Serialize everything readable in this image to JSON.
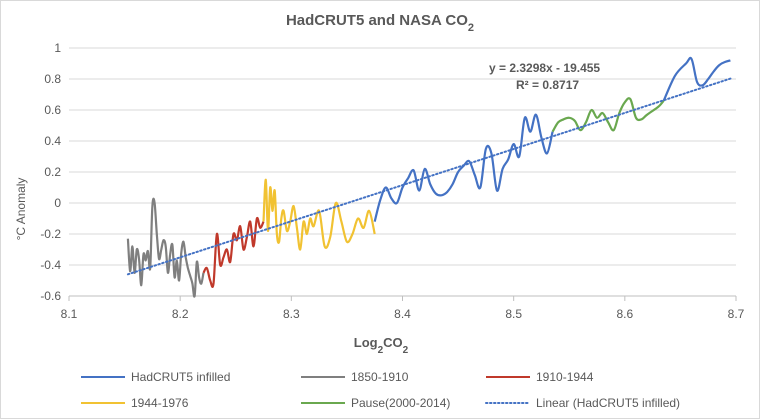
{
  "chart_data": {
    "type": "line",
    "title": "HadCRUT5 and NASA CO",
    "title_sub": "2",
    "xlabel": "Log",
    "xlabel_sub": "2",
    "xlabel_suffix": "CO",
    "xlabel_sub2": "2",
    "ylabel": "°C Anomaly",
    "xlim": [
      8.1,
      8.7
    ],
    "ylim": [
      -0.6,
      1.0
    ],
    "x_ticks": [
      8.1,
      8.2,
      8.3,
      8.4,
      8.5,
      8.6,
      8.7
    ],
    "x_tick_labels": [
      "8.1",
      "8.2",
      "8.3",
      "8.4",
      "8.5",
      "8.6",
      "8.7"
    ],
    "y_ticks": [
      -0.6,
      -0.4,
      -0.2,
      0,
      0.2,
      0.4,
      0.6,
      0.8,
      1.0
    ],
    "y_tick_labels": [
      "-0.6",
      "-0.4",
      "-0.2",
      "0",
      "0.2",
      "0.4",
      "0.6",
      "0.8",
      "1"
    ],
    "grid": "horizontal",
    "trendline": {
      "name": "Linear (HadCRUT5 infilled)",
      "equation": "y = 2.3298x - 19.455",
      "r_squared": "R² = 0.8717",
      "slope": 2.3298,
      "intercept": -19.455,
      "x_range": [
        8.153,
        8.695
      ],
      "color": "#4472c4"
    },
    "series": [
      {
        "name": "HadCRUT5 infilled",
        "color": "#4472c4",
        "points": [
          [
            8.375,
            -0.12
          ],
          [
            8.38,
            0.02
          ],
          [
            8.385,
            0.1
          ],
          [
            8.39,
            0.03
          ],
          [
            8.395,
            0.0
          ],
          [
            8.4,
            0.1
          ],
          [
            8.405,
            0.16
          ],
          [
            8.41,
            0.21
          ],
          [
            8.415,
            0.08
          ],
          [
            8.42,
            0.22
          ],
          [
            8.425,
            0.12
          ],
          [
            8.43,
            0.06
          ],
          [
            8.435,
            0.05
          ],
          [
            8.44,
            0.07
          ],
          [
            8.445,
            0.12
          ],
          [
            8.45,
            0.2
          ],
          [
            8.455,
            0.24
          ],
          [
            8.46,
            0.27
          ],
          [
            8.465,
            0.18
          ],
          [
            8.47,
            0.1
          ],
          [
            8.475,
            0.35
          ],
          [
            8.48,
            0.32
          ],
          [
            8.485,
            0.08
          ],
          [
            8.49,
            0.22
          ],
          [
            8.495,
            0.28
          ],
          [
            8.5,
            0.38
          ],
          [
            8.505,
            0.3
          ],
          [
            8.51,
            0.55
          ],
          [
            8.515,
            0.46
          ],
          [
            8.52,
            0.57
          ],
          [
            8.525,
            0.42
          ],
          [
            8.53,
            0.32
          ],
          [
            8.535,
            0.46
          ],
          [
            8.665,
            0.78
          ],
          [
            8.67,
            0.76
          ],
          [
            8.675,
            0.8
          ],
          [
            8.68,
            0.85
          ],
          [
            8.685,
            0.89
          ],
          [
            8.69,
            0.91
          ],
          [
            8.695,
            0.92
          ],
          [
            8.655,
            0.9
          ],
          [
            8.66,
            0.93
          ],
          [
            8.645,
            0.82
          ],
          [
            8.635,
            0.66
          ]
        ]
      },
      {
        "name": "1850-1910",
        "color": "#7f7f7f",
        "points": [
          [
            8.153,
            -0.23
          ],
          [
            8.155,
            -0.44
          ],
          [
            8.157,
            -0.28
          ],
          [
            8.159,
            -0.45
          ],
          [
            8.161,
            -0.3
          ],
          [
            8.163,
            -0.36
          ],
          [
            8.165,
            -0.53
          ],
          [
            8.167,
            -0.33
          ],
          [
            8.169,
            -0.37
          ],
          [
            8.171,
            -0.31
          ],
          [
            8.173,
            -0.42
          ],
          [
            8.175,
            -0.02
          ],
          [
            8.177,
            0.0
          ],
          [
            8.179,
            -0.2
          ],
          [
            8.181,
            -0.36
          ],
          [
            8.183,
            -0.3
          ],
          [
            8.185,
            -0.24
          ],
          [
            8.187,
            -0.28
          ],
          [
            8.189,
            -0.45
          ],
          [
            8.191,
            -0.33
          ],
          [
            8.193,
            -0.27
          ],
          [
            8.195,
            -0.48
          ],
          [
            8.197,
            -0.37
          ],
          [
            8.199,
            -0.5
          ],
          [
            8.201,
            -0.32
          ],
          [
            8.203,
            -0.25
          ],
          [
            8.205,
            -0.35
          ],
          [
            8.207,
            -0.42
          ],
          [
            8.209,
            -0.47
          ],
          [
            8.211,
            -0.52
          ],
          [
            8.213,
            -0.6
          ],
          [
            8.215,
            -0.38
          ],
          [
            8.217,
            -0.48
          ],
          [
            8.219,
            -0.52
          ],
          [
            8.221,
            -0.45
          ]
        ]
      },
      {
        "name": "1910-1944",
        "color": "#c0392b",
        "points": [
          [
            8.221,
            -0.45
          ],
          [
            8.224,
            -0.42
          ],
          [
            8.227,
            -0.5
          ],
          [
            8.23,
            -0.52
          ],
          [
            8.233,
            -0.2
          ],
          [
            8.236,
            -0.4
          ],
          [
            8.239,
            -0.35
          ],
          [
            8.242,
            -0.3
          ],
          [
            8.245,
            -0.38
          ],
          [
            8.248,
            -0.2
          ],
          [
            8.251,
            -0.24
          ],
          [
            8.254,
            -0.15
          ],
          [
            8.257,
            -0.3
          ],
          [
            8.26,
            -0.22
          ],
          [
            8.263,
            -0.12
          ],
          [
            8.266,
            -0.28
          ],
          [
            8.269,
            -0.1
          ],
          [
            8.272,
            -0.16
          ],
          [
            8.275,
            -0.12
          ]
        ]
      },
      {
        "name": "1944-1976",
        "color": "#f1c232",
        "points": [
          [
            8.275,
            -0.12
          ],
          [
            8.277,
            0.15
          ],
          [
            8.279,
            -0.18
          ],
          [
            8.281,
            0.1
          ],
          [
            8.283,
            -0.05
          ],
          [
            8.285,
            0.08
          ],
          [
            8.287,
            -0.2
          ],
          [
            8.289,
            -0.25
          ],
          [
            8.291,
            -0.1
          ],
          [
            8.293,
            -0.05
          ],
          [
            8.296,
            -0.18
          ],
          [
            8.299,
            -0.12
          ],
          [
            8.302,
            -0.02
          ],
          [
            8.305,
            -0.16
          ],
          [
            8.308,
            -0.3
          ],
          [
            8.311,
            -0.12
          ],
          [
            8.314,
            -0.2
          ],
          [
            8.317,
            -0.1
          ],
          [
            8.32,
            -0.15
          ],
          [
            8.325,
            -0.05
          ],
          [
            8.33,
            -0.28
          ],
          [
            8.335,
            -0.22
          ],
          [
            8.34,
            -0.0
          ],
          [
            8.345,
            -0.12
          ],
          [
            8.35,
            -0.25
          ],
          [
            8.355,
            -0.2
          ],
          [
            8.36,
            -0.1
          ],
          [
            8.365,
            -0.16
          ],
          [
            8.37,
            -0.05
          ],
          [
            8.375,
            -0.2
          ]
        ]
      },
      {
        "name": "Pause(2000-2014)",
        "color": "#6aa84f",
        "points": [
          [
            8.535,
            0.46
          ],
          [
            8.54,
            0.52
          ],
          [
            8.545,
            0.54
          ],
          [
            8.55,
            0.55
          ],
          [
            8.555,
            0.53
          ],
          [
            8.56,
            0.47
          ],
          [
            8.565,
            0.52
          ],
          [
            8.57,
            0.6
          ],
          [
            8.575,
            0.55
          ],
          [
            8.58,
            0.58
          ],
          [
            8.585,
            0.52
          ],
          [
            8.59,
            0.47
          ],
          [
            8.595,
            0.58
          ],
          [
            8.6,
            0.65
          ],
          [
            8.605,
            0.67
          ],
          [
            8.61,
            0.55
          ],
          [
            8.615,
            0.54
          ],
          [
            8.62,
            0.57
          ],
          [
            8.63,
            0.62
          ],
          [
            8.635,
            0.66
          ]
        ]
      }
    ],
    "legend": [
      {
        "label": "HadCRUT5 infilled",
        "color": "#4472c4",
        "dash": false
      },
      {
        "label": "1850-1910",
        "color": "#7f7f7f",
        "dash": false
      },
      {
        "label": "1910-1944",
        "color": "#c0392b",
        "dash": false
      },
      {
        "label": "1944-1976",
        "color": "#f1c232",
        "dash": false
      },
      {
        "label": "Pause(2000-2014)",
        "color": "#6aa84f",
        "dash": false
      },
      {
        "label": "Linear (HadCRUT5 infilled)",
        "color": "#4472c4",
        "dash": true
      }
    ],
    "legend_position": "bottom"
  }
}
